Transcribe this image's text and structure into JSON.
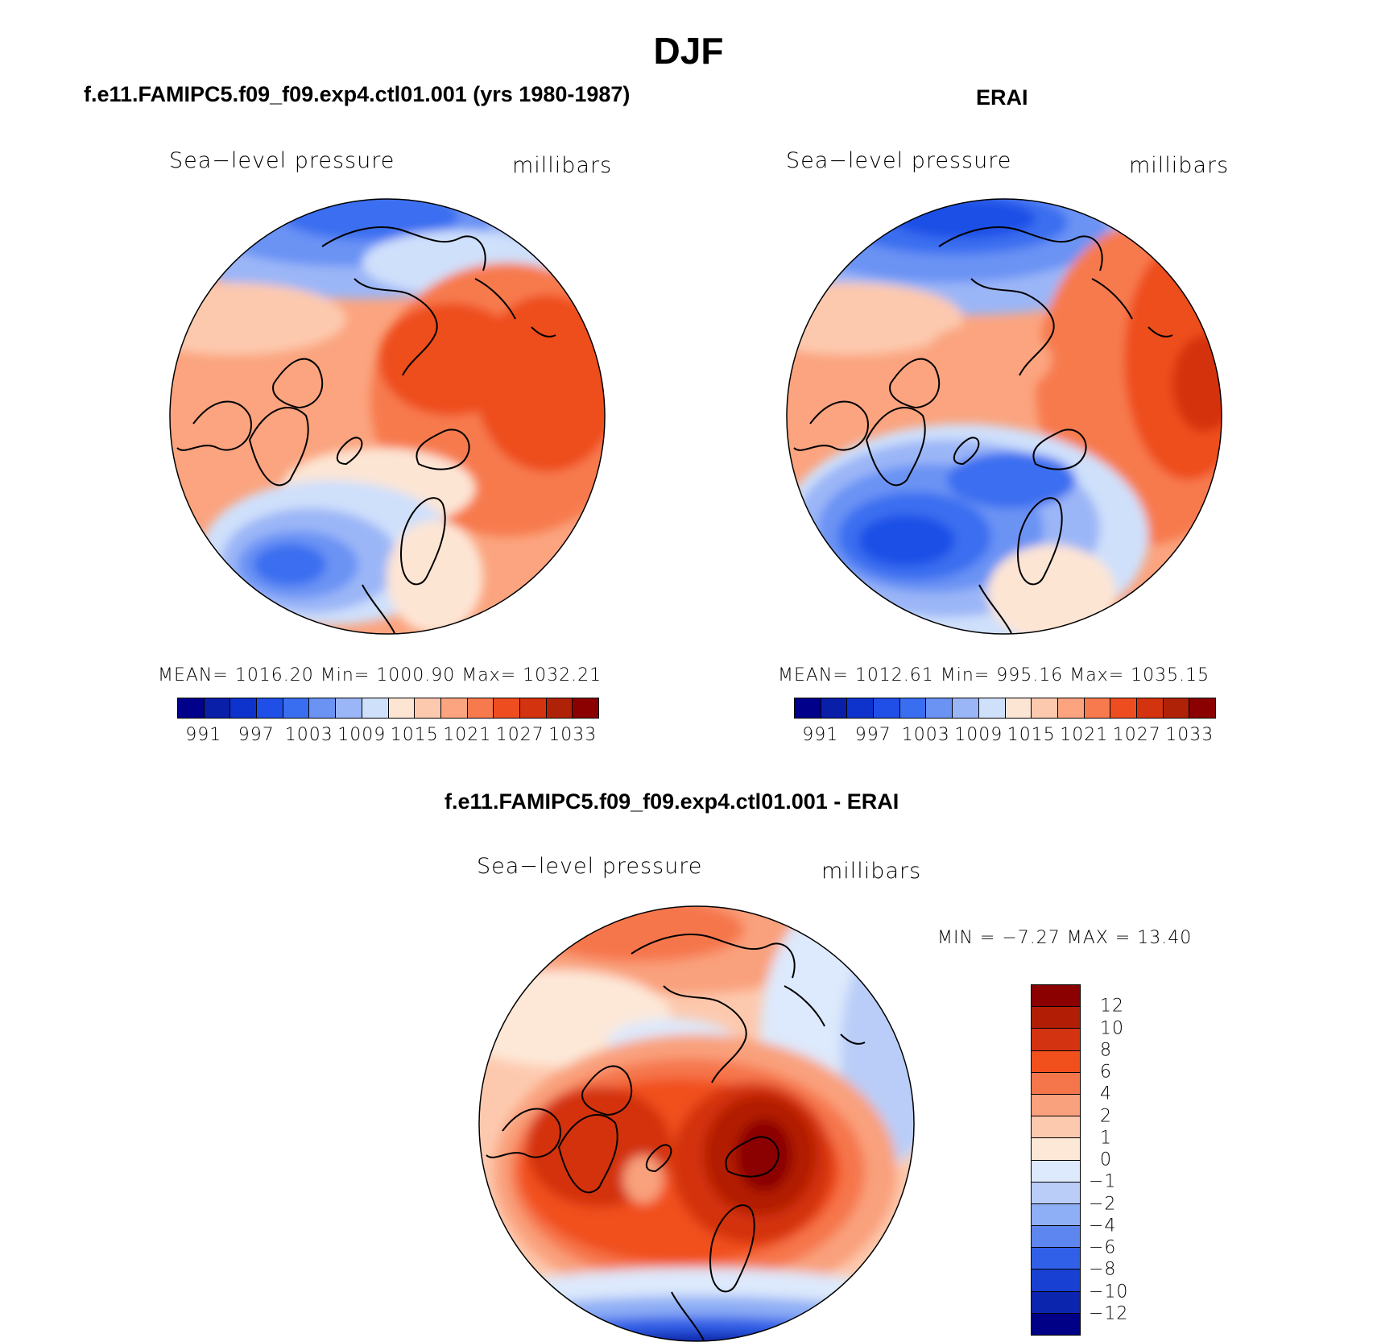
{
  "title": "DJF",
  "palette_main": [
    "#00008b",
    "#0a1fa8",
    "#0d33cc",
    "#1f4fe6",
    "#3a6ef0",
    "#6b93f4",
    "#9bb6f7",
    "#cfe0fb",
    "#fde5d4",
    "#fdc9ae",
    "#fba47f",
    "#f77a4e",
    "#ee4d1f",
    "#d43310",
    "#b02208",
    "#8b0000"
  ],
  "palette_diff": [
    "#8b0000",
    "#b21e05",
    "#d33311",
    "#f1501d",
    "#f6764b",
    "#f9a07c",
    "#fdc9ae",
    "#fde8d8",
    "#dde9fc",
    "#b9cdf8",
    "#8eaef5",
    "#5e86f0",
    "#3160e8",
    "#1840d2",
    "#0b25ae",
    "#000086"
  ],
  "panels": [
    {
      "title": "f.e11.FAMIPC5.f09_f09.exp4.ctl01.001 (yrs 1980-1987)",
      "variable": "Sea−level pressure",
      "units": "millibars",
      "stats": "MEAN=  1016.20    Min=  1000.90    Max=  1032.21",
      "ticks": [
        "991",
        "997",
        "1003",
        "1009",
        "1015",
        "1021",
        "1027",
        "1033"
      ]
    },
    {
      "title": "ERAI",
      "variable": "Sea−level pressure",
      "units": "millibars",
      "stats": "MEAN=  1012.61    Min=  995.16    Max=  1035.15",
      "ticks": [
        "991",
        "997",
        "1003",
        "1009",
        "1015",
        "1021",
        "1027",
        "1033"
      ]
    },
    {
      "title": "f.e11.FAMIPC5.f09_f09.exp4.ctl01.001 - ERAI",
      "variable": "Sea−level pressure",
      "units": "millibars",
      "stats": "MIN =   −7.27  MAX =    13.40",
      "ticks": [
        "12",
        "10",
        "8",
        "6",
        "4",
        "2",
        "1",
        "0",
        "−1",
        "−2",
        "−4",
        "−6",
        "−8",
        "−10",
        "−12"
      ]
    }
  ]
}
